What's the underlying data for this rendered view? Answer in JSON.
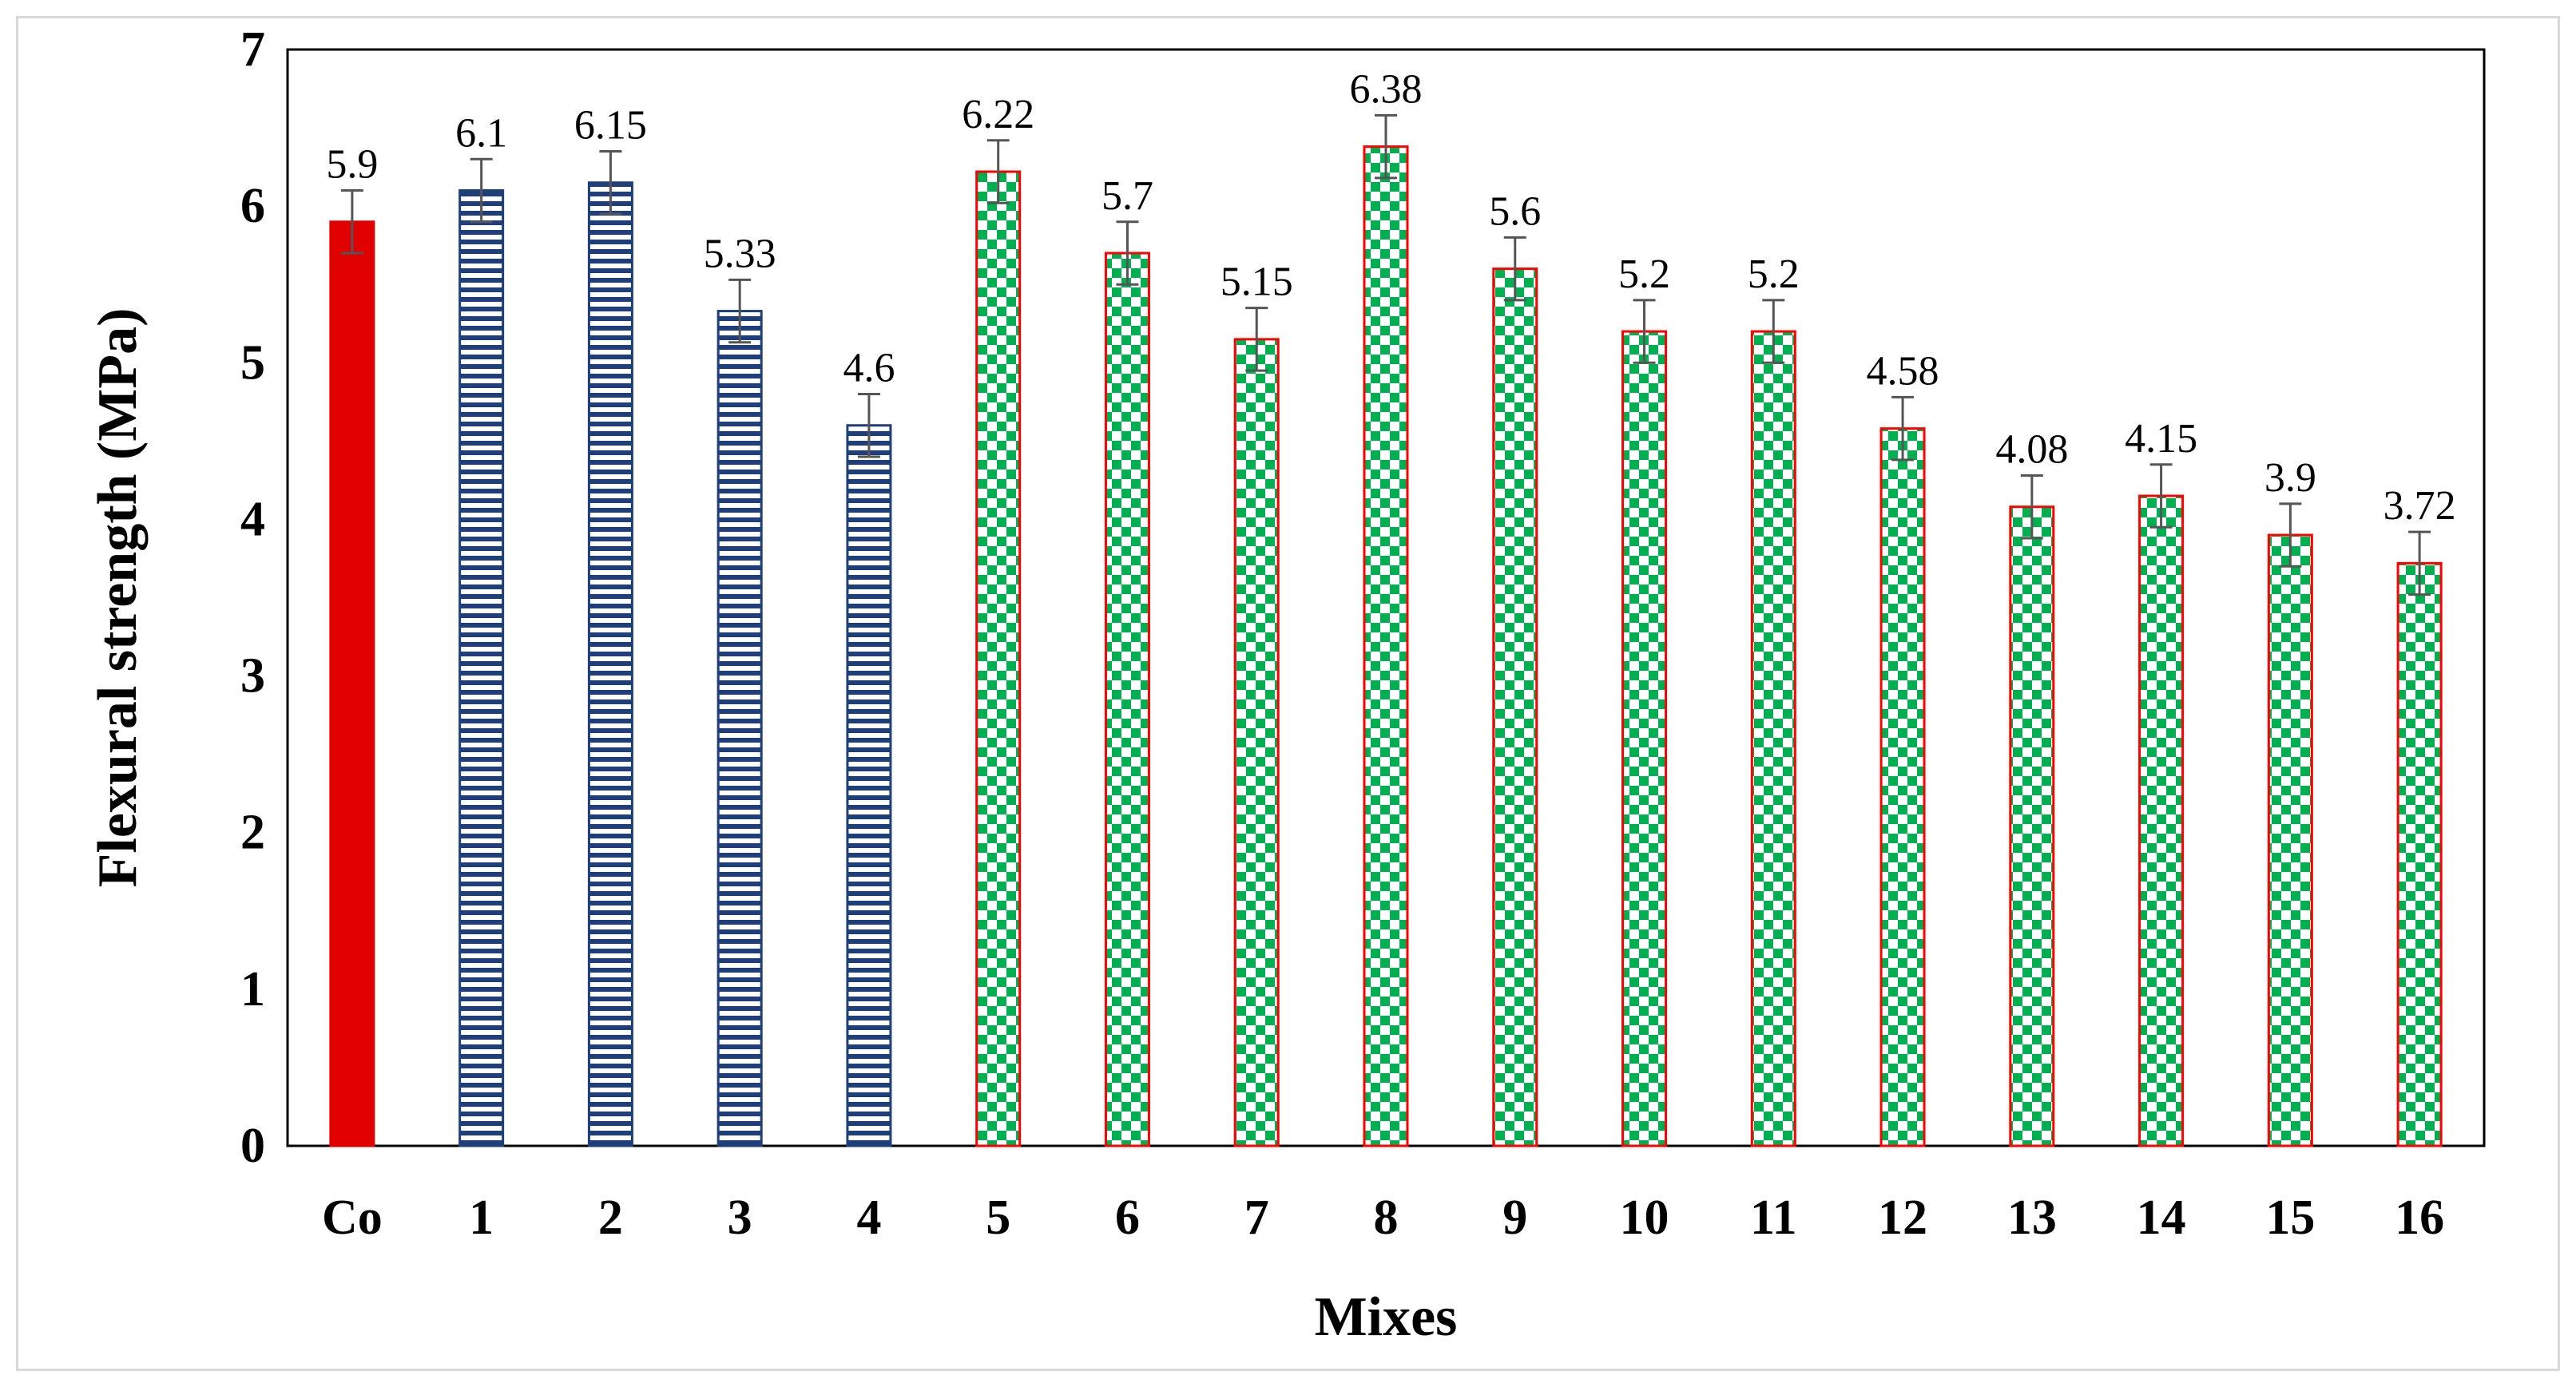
{
  "chart_data": {
    "type": "bar",
    "title": "",
    "xlabel": "Mixes",
    "ylabel": "Flexural strength (MPa)",
    "ylim": [
      0,
      7
    ],
    "yticks": [
      0,
      1,
      2,
      3,
      4,
      5,
      6,
      7
    ],
    "grid": false,
    "legend": "none",
    "error_bars": true,
    "categories": [
      "Co",
      "1",
      "2",
      "3",
      "4",
      "5",
      "6",
      "7",
      "8",
      "9",
      "10",
      "11",
      "12",
      "13",
      "14",
      "15",
      "16"
    ],
    "values": [
      5.9,
      6.1,
      6.15,
      5.33,
      4.6,
      6.22,
      5.7,
      5.15,
      6.38,
      5.6,
      5.2,
      5.2,
      4.58,
      4.08,
      4.15,
      3.9,
      3.72
    ],
    "data_labels": [
      "5.9",
      "6.1",
      "6.15",
      "5.33",
      "4.6",
      "6.22",
      "5.7",
      "5.15",
      "6.38",
      "5.6",
      "5.2",
      "5.2",
      "4.58",
      "4.08",
      "4.15",
      "3.9",
      "3.72"
    ],
    "error": 0.2,
    "groups": [
      {
        "style": "solid",
        "indices": [
          0
        ],
        "fill": "#e00000",
        "stroke": "#e00000"
      },
      {
        "style": "horizontal-stripes",
        "indices": [
          1,
          2,
          3,
          4
        ],
        "fill": "#1f3f7a",
        "stroke": "#1f3f7a"
      },
      {
        "style": "checkerboard",
        "indices": [
          5,
          6,
          7,
          8,
          9,
          10,
          11,
          12,
          13,
          14,
          15,
          16
        ],
        "fill": "#00b050",
        "stroke": "#ff0000"
      }
    ]
  }
}
